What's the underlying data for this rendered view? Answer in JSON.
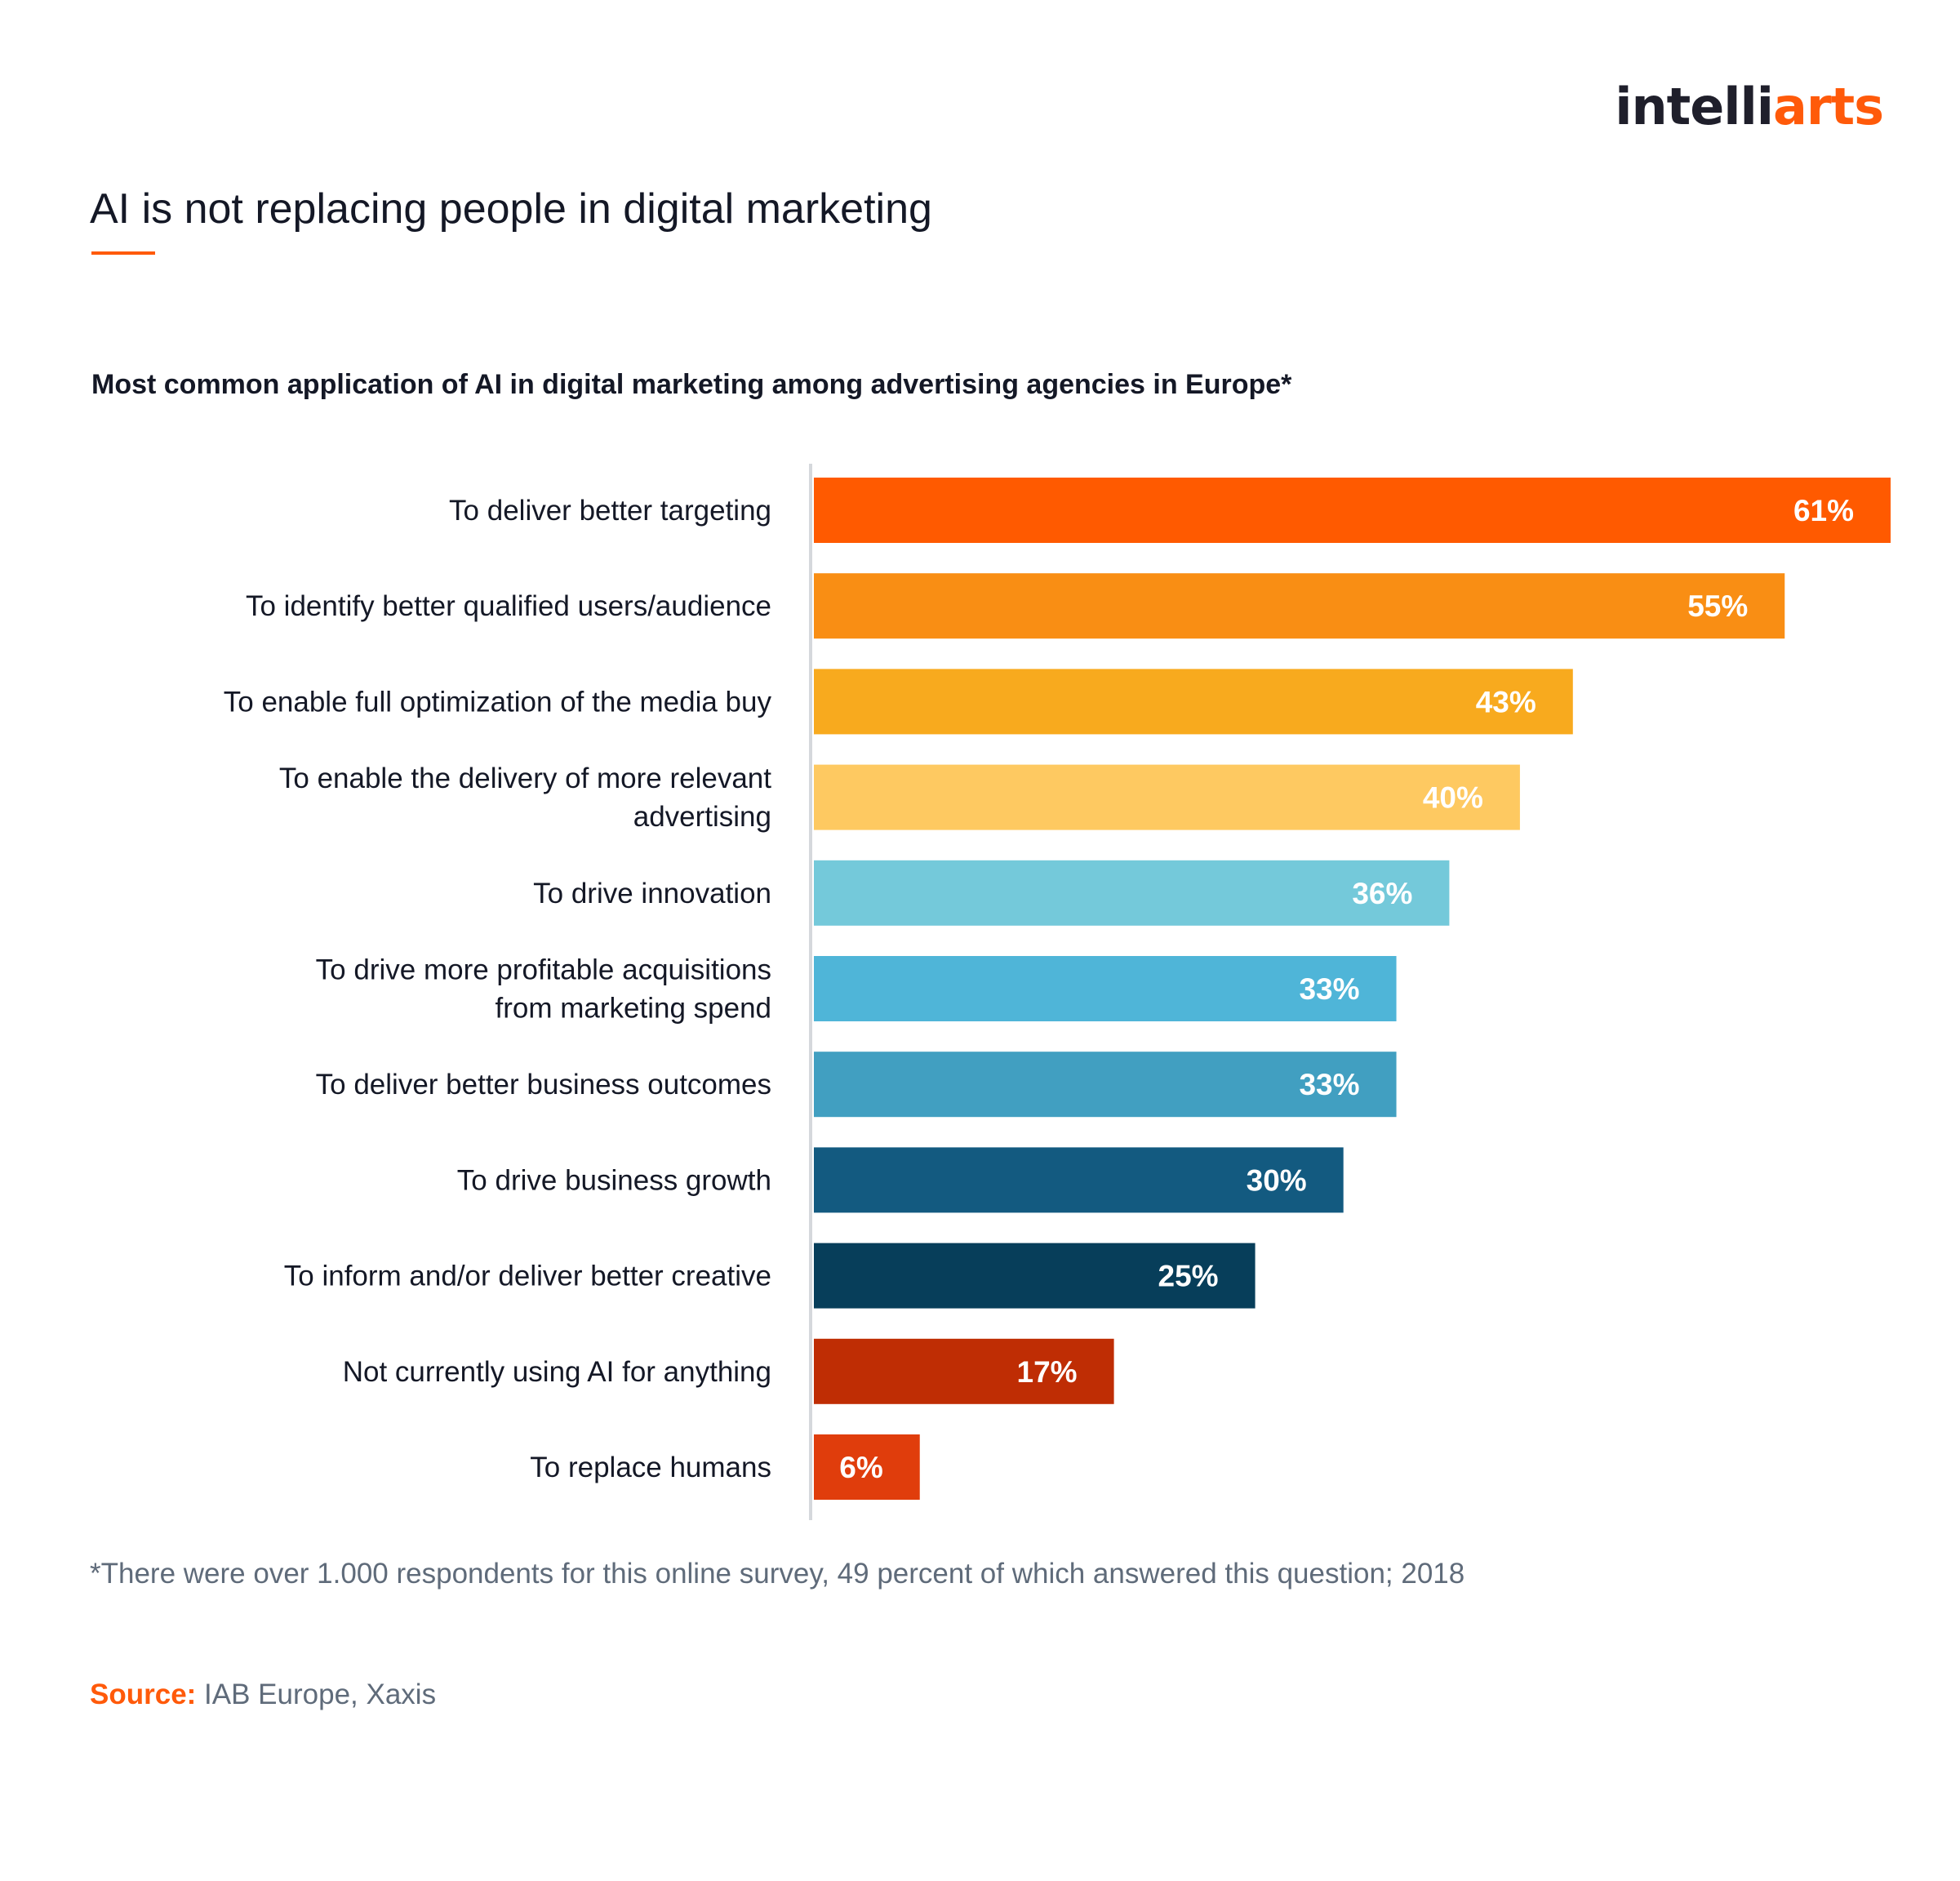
{
  "brand": {
    "logo_part1": "intelli",
    "logo_part2": "arts"
  },
  "header": {
    "title": "AI is not replacing people in digital marketing"
  },
  "chart_data": {
    "type": "bar",
    "orientation": "horizontal",
    "title": "Most common application of AI in digital marketing among advertising agencies in Europe*",
    "categories": [
      [
        "To deliver better targeting"
      ],
      [
        "To identify better qualified users/audience"
      ],
      [
        "To enable full optimization of the media buy"
      ],
      [
        "To enable the delivery of more relevant",
        "advertising"
      ],
      [
        "To drive innovation"
      ],
      [
        "To drive more profitable acquisitions",
        "from marketing spend"
      ],
      [
        "To deliver better business outcomes"
      ],
      [
        "To drive business growth"
      ],
      [
        "To inform and/or deliver better creative"
      ],
      [
        "Not currently using AI for anything"
      ],
      [
        "To replace humans"
      ]
    ],
    "values": [
      61,
      55,
      43,
      40,
      36,
      33,
      33,
      30,
      25,
      17,
      6
    ],
    "value_labels": [
      "61%",
      "55%",
      "43%",
      "40%",
      "36%",
      "33%",
      "33%",
      "30%",
      "25%",
      "17%",
      "6%"
    ],
    "colors": [
      "#ff5a00",
      "#f98e14",
      "#f8aa1e",
      "#fec961",
      "#74c9da",
      "#4fb5d8",
      "#419fc1",
      "#135a80",
      "#073e5a",
      "#bf2d04",
      "#e03d0c"
    ],
    "xlim": [
      0,
      61
    ],
    "unit": "%"
  },
  "footer": {
    "note": "*There were over 1.000 respondents for this online survey, 49 percent of which answered this question; 2018",
    "source_label": "Source:",
    "source_text": " IAB Europe, Xaxis"
  },
  "colors": {
    "accent": "#ff5a0a",
    "text": "#141826",
    "muted": "#5f6b7a",
    "axis": "#d5d8dc"
  }
}
